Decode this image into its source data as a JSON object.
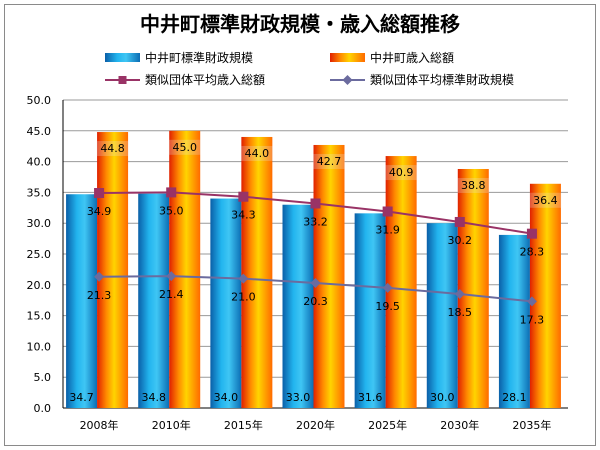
{
  "chart_data": {
    "type": "bar",
    "title": "中井町標準財政規模・歳入総額推移",
    "categories": [
      "2008年",
      "2010年",
      "2015年",
      "2020年",
      "2025年",
      "2030年",
      "2035年"
    ],
    "ylim": [
      0,
      50
    ],
    "yticks": [
      "0.0",
      "5.0",
      "10.0",
      "15.0",
      "20.0",
      "25.0",
      "30.0",
      "35.0",
      "40.0",
      "45.0",
      "50.0"
    ],
    "grid": true,
    "legend_position": "top",
    "series": [
      {
        "name": "中井町標準財政規模",
        "kind": "bar",
        "color": "#1a9ad6",
        "values": [
          34.7,
          34.8,
          34.0,
          33.0,
          31.6,
          30.0,
          28.1
        ],
        "labels": [
          "34.7",
          "34.8",
          "34.0",
          "33.0",
          "31.6",
          "30.0",
          "28.1"
        ]
      },
      {
        "name": "中井町歳入総額",
        "kind": "bar",
        "color": "#ff8c00",
        "values": [
          44.8,
          45.0,
          44.0,
          42.7,
          40.9,
          38.8,
          36.4
        ],
        "labels": [
          "44.8",
          "45.0",
          "44.0",
          "42.7",
          "40.9",
          "38.8",
          "36.4"
        ]
      },
      {
        "name": "類似団体平均歳入総額",
        "kind": "line",
        "color": "#993366",
        "marker": "square",
        "values": [
          34.9,
          35.0,
          34.3,
          33.2,
          31.9,
          30.2,
          28.3
        ],
        "labels": [
          "34.9",
          "35.0",
          "34.3",
          "33.2",
          "31.9",
          "30.2",
          "28.3"
        ]
      },
      {
        "name": "類似団体平均標準財政規模",
        "kind": "line",
        "color": "#6b6b9e",
        "marker": "diamond",
        "values": [
          21.3,
          21.4,
          21.0,
          20.3,
          19.5,
          18.5,
          17.3
        ],
        "labels": [
          "21.3",
          "21.4",
          "21.0",
          "20.3",
          "19.5",
          "18.5",
          "17.3"
        ]
      }
    ]
  }
}
